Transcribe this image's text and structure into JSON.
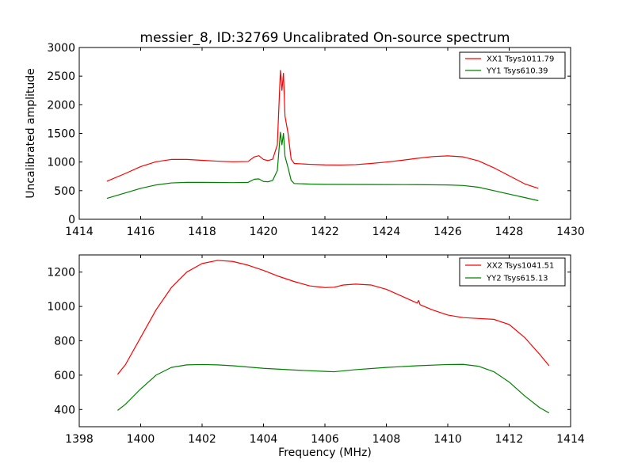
{
  "chart_data": [
    {
      "type": "line",
      "title": "messier_8, ID:32769 Uncalibrated On-source spectrum",
      "xlabel": "",
      "ylabel": "Uncalibrated amplitude",
      "xlim": [
        1414,
        1430
      ],
      "ylim": [
        0,
        3000
      ],
      "xticks": [
        1414,
        1416,
        1418,
        1420,
        1422,
        1424,
        1426,
        1428,
        1430
      ],
      "yticks": [
        0,
        500,
        1000,
        1500,
        2000,
        2500,
        3000
      ],
      "xtick_labels": [
        "1414",
        "1416",
        "1418",
        "1420",
        "1422",
        "1424",
        "1426",
        "1428",
        "1430"
      ],
      "ytick_labels": [
        "0",
        "500",
        "1000",
        "1500",
        "2000",
        "2500",
        "3000"
      ],
      "legend_position": "top-right",
      "series": [
        {
          "name": "XX1 Tsys1011.79",
          "color": "#ff0000",
          "x": [
            1414.9,
            1415.5,
            1416.0,
            1416.5,
            1417.0,
            1417.5,
            1418.0,
            1418.5,
            1419.0,
            1419.5,
            1419.7,
            1419.85,
            1420.0,
            1420.15,
            1420.3,
            1420.45,
            1420.55,
            1420.6,
            1420.65,
            1420.7,
            1420.8,
            1420.9,
            1421.0,
            1421.5,
            1422.0,
            1422.5,
            1423.0,
            1423.5,
            1424.0,
            1424.5,
            1425.0,
            1425.5,
            1426.0,
            1426.5,
            1427.0,
            1427.5,
            1428.0,
            1428.5,
            1428.95
          ],
          "y": [
            665,
            800,
            920,
            1005,
            1045,
            1045,
            1030,
            1015,
            1005,
            1010,
            1090,
            1110,
            1045,
            1025,
            1050,
            1300,
            2600,
            2250,
            2550,
            1800,
            1500,
            1050,
            975,
            960,
            950,
            948,
            955,
            975,
            1000,
            1030,
            1065,
            1095,
            1108,
            1090,
            1020,
            900,
            760,
            620,
            540
          ]
        },
        {
          "name": "YY1 Tsys610.39",
          "color": "#008000",
          "x": [
            1414.9,
            1415.5,
            1416.0,
            1416.5,
            1417.0,
            1417.5,
            1418.0,
            1418.5,
            1419.0,
            1419.5,
            1419.7,
            1419.85,
            1420.0,
            1420.15,
            1420.3,
            1420.45,
            1420.55,
            1420.6,
            1420.65,
            1420.7,
            1420.8,
            1420.9,
            1421.0,
            1421.5,
            1422.0,
            1423.0,
            1424.0,
            1425.0,
            1426.0,
            1426.5,
            1427.0,
            1427.5,
            1428.0,
            1428.5,
            1428.95
          ],
          "y": [
            365,
            460,
            540,
            600,
            635,
            645,
            645,
            643,
            640,
            645,
            700,
            705,
            660,
            655,
            680,
            850,
            1520,
            1300,
            1500,
            1100,
            900,
            680,
            625,
            615,
            610,
            608,
            607,
            605,
            600,
            590,
            560,
            500,
            440,
            380,
            325
          ]
        }
      ]
    },
    {
      "type": "line",
      "title": "",
      "xlabel": "Frequency (MHz)",
      "ylabel": "",
      "xlim": [
        1398,
        1414
      ],
      "ylim": [
        300,
        1300
      ],
      "xticks": [
        1398,
        1400,
        1402,
        1404,
        1406,
        1408,
        1410,
        1412,
        1414
      ],
      "yticks": [
        400,
        600,
        800,
        1000,
        1200
      ],
      "xtick_labels": [
        "1398",
        "1400",
        "1402",
        "1404",
        "1406",
        "1408",
        "1410",
        "1412",
        "1414"
      ],
      "ytick_labels": [
        "400",
        "600",
        "800",
        "1000",
        "1200"
      ],
      "legend_position": "top-right",
      "series": [
        {
          "name": "XX2 Tsys1041.51",
          "color": "#ff0000",
          "x": [
            1399.25,
            1399.5,
            1400.0,
            1400.5,
            1401.0,
            1401.5,
            1402.0,
            1402.5,
            1403.0,
            1403.5,
            1404.0,
            1404.5,
            1405.0,
            1405.5,
            1406.0,
            1406.3,
            1406.6,
            1407.0,
            1407.5,
            1408.0,
            1408.5,
            1409.0,
            1409.05,
            1409.1,
            1409.5,
            1410.0,
            1410.5,
            1411.0,
            1411.5,
            1412.0,
            1412.5,
            1413.0,
            1413.3
          ],
          "y": [
            605,
            660,
            820,
            980,
            1110,
            1200,
            1250,
            1268,
            1262,
            1240,
            1210,
            1175,
            1145,
            1120,
            1110,
            1112,
            1125,
            1130,
            1125,
            1100,
            1060,
            1020,
            1035,
            1010,
            980,
            950,
            935,
            930,
            925,
            895,
            820,
            720,
            655
          ]
        },
        {
          "name": "YY2 Tsys615.13",
          "color": "#008000",
          "x": [
            1399.25,
            1399.5,
            1400.0,
            1400.5,
            1401.0,
            1401.5,
            1402.0,
            1402.5,
            1403.0,
            1404.0,
            1405.0,
            1406.0,
            1406.3,
            1407.0,
            1408.0,
            1409.0,
            1410.0,
            1410.5,
            1411.0,
            1411.5,
            1412.0,
            1412.5,
            1413.0,
            1413.3
          ],
          "y": [
            395,
            430,
            520,
            600,
            645,
            660,
            662,
            660,
            655,
            640,
            630,
            622,
            620,
            632,
            645,
            655,
            662,
            663,
            652,
            620,
            560,
            480,
            410,
            380
          ]
        }
      ]
    }
  ]
}
